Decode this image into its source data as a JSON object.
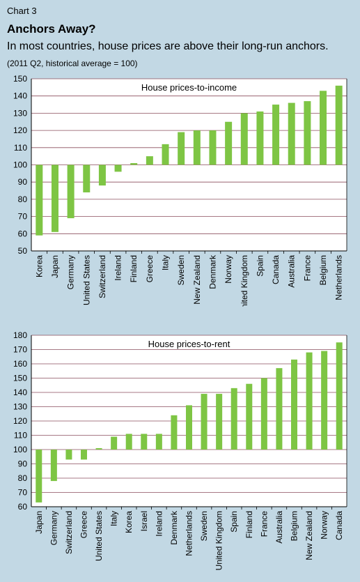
{
  "header": {
    "chart_number": "Chart 3",
    "title": "Anchors Away?",
    "subtitle": "In most countries, house prices are above their long-run anchors.",
    "note": "(2011 Q2, historical average = 100)"
  },
  "colors": {
    "background": "#c2d8e4",
    "plot_background": "#ffffff",
    "bar": "#7ec544",
    "grid": "#8a4d5c"
  },
  "chart_data": [
    {
      "type": "bar",
      "title": "House prices-to-income",
      "baseline": 100,
      "ylim": [
        50,
        150
      ],
      "yticks": [
        50,
        60,
        70,
        80,
        90,
        100,
        110,
        120,
        130,
        140,
        150
      ],
      "categories": [
        "Korea",
        "Japan",
        "Germany",
        "United States",
        "Switzerland",
        "Ireland",
        "Finland",
        "Greece",
        "Italy",
        "Sweden",
        "New Zealand",
        "Denmark",
        "Norway",
        "United Kingdom",
        "Spain",
        "Canada",
        "Australia",
        "France",
        "Belgium",
        "Netherlands"
      ],
      "values": [
        59,
        61,
        69,
        84,
        88,
        96,
        101,
        105,
        112,
        119,
        120,
        120,
        125,
        130,
        131,
        135,
        136,
        137,
        143,
        146
      ]
    },
    {
      "type": "bar",
      "title": "House prices-to-rent",
      "baseline": 100,
      "ylim": [
        60,
        180
      ],
      "yticks": [
        60,
        70,
        80,
        90,
        100,
        110,
        120,
        130,
        140,
        150,
        160,
        170,
        180
      ],
      "categories": [
        "Japan",
        "Germany",
        "Switzerland",
        "Greece",
        "United States",
        "Italy",
        "Korea",
        "Israel",
        "Ireland",
        "Denmark",
        "Netherlands",
        "Sweden",
        "United Kingdom",
        "Spain",
        "Finland",
        "France",
        "Australia",
        "Belgium",
        "New Zealand",
        "Norway",
        "Canada"
      ],
      "values": [
        63,
        78,
        93,
        93,
        101,
        109,
        111,
        111,
        111,
        124,
        131,
        139,
        139,
        143,
        146,
        150,
        157,
        163,
        168,
        169,
        175
      ]
    }
  ]
}
